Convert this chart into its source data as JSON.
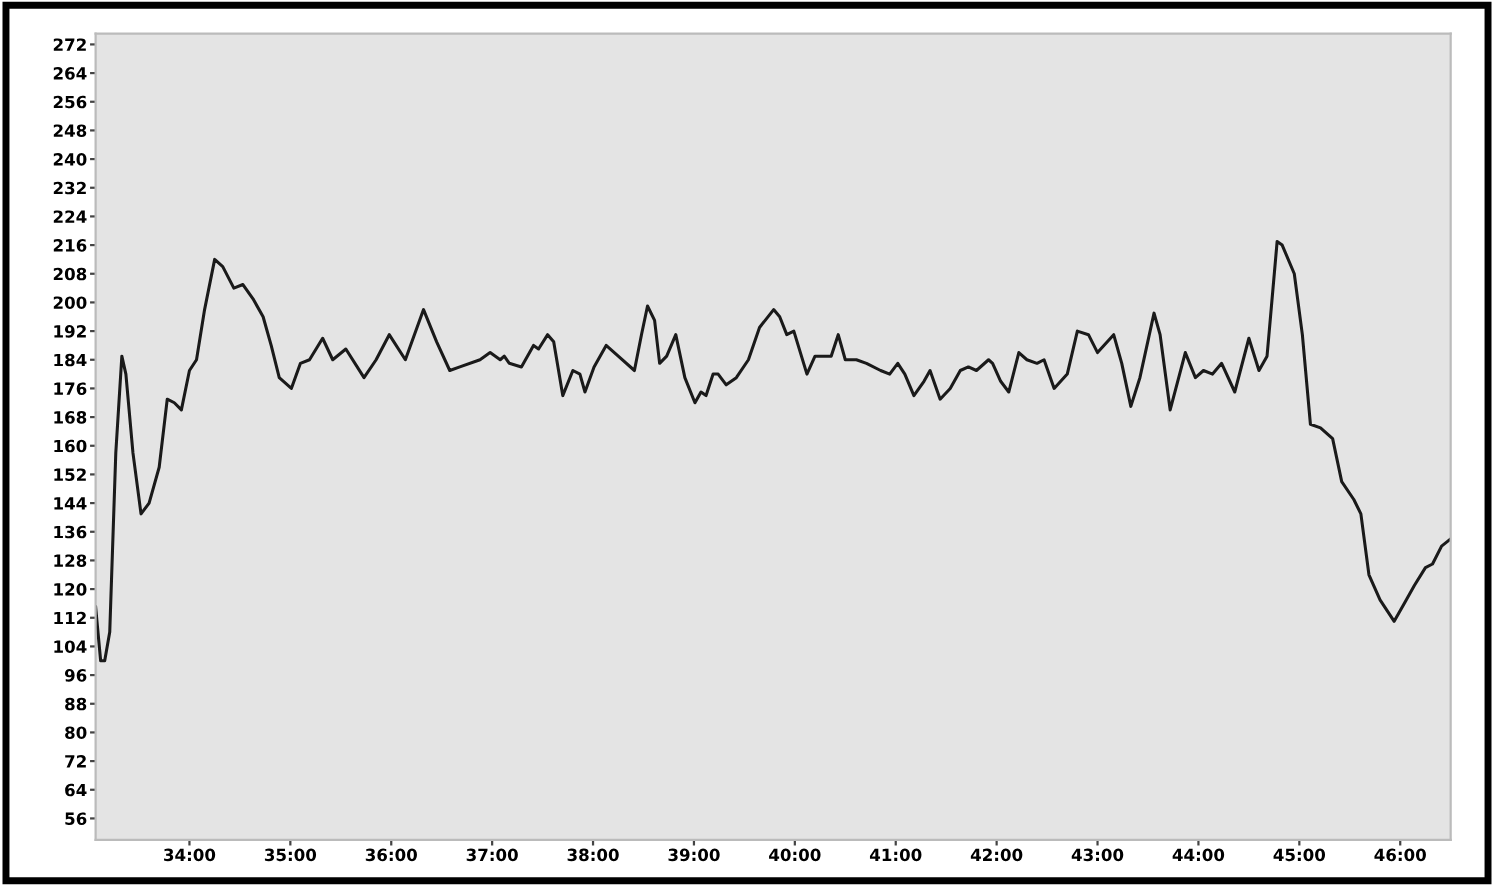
{
  "chart_data": {
    "type": "line",
    "x": [
      33.07,
      33.12,
      33.16,
      33.21,
      33.27,
      33.33,
      33.37,
      33.44,
      33.52,
      33.6,
      33.7,
      33.78,
      33.85,
      33.92,
      34.0,
      34.07,
      34.15,
      34.25,
      34.33,
      34.44,
      34.53,
      34.63,
      34.73,
      34.81,
      34.89,
      35.01,
      35.1,
      35.19,
      35.32,
      35.42,
      35.55,
      35.73,
      35.85,
      35.98,
      36.14,
      36.32,
      36.45,
      36.58,
      36.68,
      36.88,
      36.98,
      37.08,
      37.12,
      37.17,
      37.29,
      37.41,
      37.46,
      37.55,
      37.61,
      37.7,
      37.8,
      37.87,
      37.92,
      38.01,
      38.13,
      38.25,
      38.41,
      38.48,
      38.54,
      38.61,
      38.66,
      38.73,
      38.82,
      38.91,
      39.01,
      39.07,
      39.12,
      39.19,
      39.24,
      39.32,
      39.42,
      39.54,
      39.65,
      39.79,
      39.85,
      39.92,
      39.99,
      40.12,
      40.2,
      40.32,
      40.36,
      40.43,
      40.5,
      40.61,
      40.71,
      40.85,
      40.94,
      41.02,
      41.09,
      41.18,
      41.28,
      41.34,
      41.44,
      41.54,
      41.64,
      41.72,
      41.8,
      41.92,
      41.96,
      42.04,
      42.12,
      42.22,
      42.3,
      42.4,
      42.47,
      42.57,
      42.7,
      42.8,
      42.91,
      43.0,
      43.16,
      43.24,
      43.33,
      43.42,
      43.56,
      43.62,
      43.72,
      43.87,
      43.97,
      44.05,
      44.14,
      44.23,
      44.36,
      44.5,
      44.6,
      44.68,
      44.78,
      44.83,
      44.95,
      45.03,
      45.11,
      45.21,
      45.33,
      45.42,
      45.54,
      45.61,
      45.69,
      45.8,
      45.94,
      46.04,
      46.14,
      46.25,
      46.32,
      46.41,
      46.5
    ],
    "series": [
      {
        "color": "#1a1a1a",
        "values": [
          115,
          100,
          100,
          108,
          158,
          185,
          180,
          158,
          141,
          144,
          154,
          173,
          172,
          170,
          181,
          184,
          198,
          212,
          210,
          204,
          205,
          201,
          196,
          188,
          179,
          176,
          183,
          184,
          190,
          184,
          187,
          179,
          184,
          191,
          184,
          198,
          189,
          181,
          182,
          184,
          186,
          184,
          185,
          183,
          182,
          188,
          187,
          191,
          189,
          174,
          181,
          180,
          175,
          182,
          188,
          185,
          181,
          191,
          199,
          195,
          183,
          185,
          191,
          179,
          172,
          175,
          174,
          180,
          180,
          177,
          179,
          184,
          193,
          198,
          196,
          191,
          192,
          180,
          185,
          185,
          185,
          191,
          184,
          184,
          183,
          181,
          180,
          183,
          180,
          174,
          178,
          181,
          173,
          176,
          181,
          182,
          181,
          184,
          183,
          178,
          175,
          186,
          184,
          183,
          184,
          176,
          180,
          192,
          191,
          186,
          191,
          183,
          171,
          179,
          197,
          191,
          170,
          186,
          179,
          181,
          180,
          183,
          175,
          190,
          181,
          185,
          217,
          216,
          208,
          191,
          166,
          165,
          162,
          150,
          145,
          141,
          124,
          117,
          111,
          116,
          121,
          126,
          127,
          132,
          134
        ]
      }
    ],
    "xlim": [
      33.07,
      46.5
    ],
    "xticks": [
      {
        "value": 34,
        "label": "34:00"
      },
      {
        "value": 35,
        "label": "35:00"
      },
      {
        "value": 36,
        "label": "36:00"
      },
      {
        "value": 37,
        "label": "37:00"
      },
      {
        "value": 38,
        "label": "38:00"
      },
      {
        "value": 39,
        "label": "39:00"
      },
      {
        "value": 40,
        "label": "40:00"
      },
      {
        "value": 41,
        "label": "41:00"
      },
      {
        "value": 42,
        "label": "42:00"
      },
      {
        "value": 43,
        "label": "43:00"
      },
      {
        "value": 44,
        "label": "44:00"
      },
      {
        "value": 45,
        "label": "45:00"
      },
      {
        "value": 46,
        "label": "46:00"
      }
    ],
    "ylim": [
      50,
      275
    ],
    "yticks": [
      56,
      64,
      72,
      80,
      88,
      96,
      104,
      112,
      120,
      128,
      136,
      144,
      152,
      160,
      168,
      176,
      184,
      192,
      200,
      208,
      216,
      224,
      232,
      240,
      248,
      256,
      264,
      272
    ],
    "grid": false,
    "legend": false,
    "marker": "none",
    "line_style": "solid"
  }
}
